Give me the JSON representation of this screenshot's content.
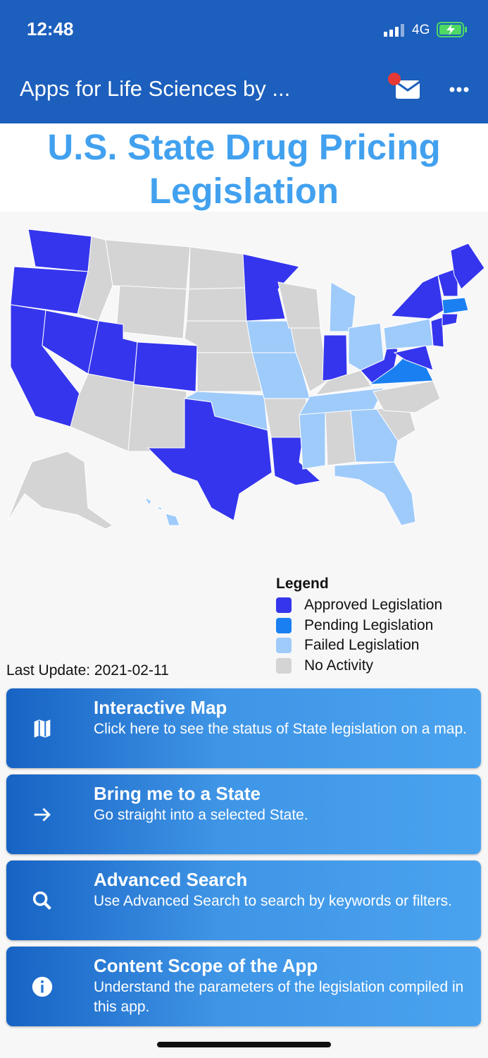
{
  "status_bar": {
    "time": "12:48",
    "network": "4G"
  },
  "app_bar": {
    "title": "Apps for Life Sciences by ..."
  },
  "header": {
    "title": "U.S. State Drug Pricing Legislation"
  },
  "legend": {
    "title": "Legend",
    "items": [
      {
        "label": "Approved Legislation",
        "color": "#3535ee"
      },
      {
        "label": "Pending Legislation",
        "color": "#1a80f2"
      },
      {
        "label": "Failed Legislation",
        "color": "#9fcbfb"
      },
      {
        "label": "No Activity",
        "color": "#d4d4d4"
      }
    ]
  },
  "last_update": "Last Update: 2021-02-11",
  "menu": [
    {
      "title": "Interactive Map",
      "description": "Click here to see the status of State legislation on a map."
    },
    {
      "title": "Bring me to a State",
      "description": "Go straight into a selected State."
    },
    {
      "title": "Advanced Search",
      "description": "Use Advanced Search to search by keywords or filters."
    },
    {
      "title": "Content Scope of the App",
      "description": "Understand the parameters of the legislation compiled in this app."
    }
  ]
}
